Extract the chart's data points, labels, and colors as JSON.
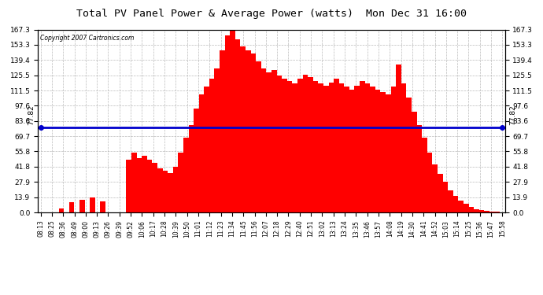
{
  "title": "Total PV Panel Power & Average Power (watts)  Mon Dec 31 16:00",
  "copyright_text": "Copyright 2007 Cartronics.com",
  "average_power": 77.82,
  "bar_color": "#FF0000",
  "avg_line_color": "#0000CC",
  "background_color": "#FFFFFF",
  "plot_bg_color": "#FFFFFF",
  "grid_color": "#AAAAAA",
  "yticks": [
    0.0,
    13.9,
    27.9,
    41.8,
    55.8,
    69.7,
    83.6,
    97.6,
    111.5,
    125.5,
    139.4,
    153.3,
    167.3
  ],
  "ylim": [
    0,
    167.3
  ],
  "x_tick_labels": [
    "08:13",
    "08:25",
    "08:36",
    "08:49",
    "09:00",
    "09:13",
    "09:26",
    "09:39",
    "09:52",
    "10:06",
    "10:17",
    "10:28",
    "10:39",
    "10:50",
    "11:01",
    "11:12",
    "11:23",
    "11:34",
    "11:45",
    "11:56",
    "12:07",
    "12:18",
    "12:29",
    "12:40",
    "12:51",
    "13:02",
    "13:13",
    "13:24",
    "13:35",
    "13:46",
    "13:57",
    "14:08",
    "14:19",
    "14:30",
    "14:41",
    "14:52",
    "15:03",
    "15:14",
    "15:25",
    "15:36",
    "15:47",
    "15:58"
  ],
  "bar_values": [
    0.0,
    0.0,
    0.0,
    0.0,
    3.5,
    0.0,
    9.0,
    0.0,
    11.5,
    0.0,
    13.5,
    0.0,
    10.0,
    0.0,
    0.0,
    0.0,
    0.0,
    48.0,
    55.0,
    50.0,
    52.0,
    48.0,
    45.0,
    40.0,
    38.0,
    36.0,
    42.0,
    55.0,
    68.0,
    80.0,
    95.0,
    108.0,
    115.0,
    122.0,
    132.0,
    148.0,
    162.0,
    167.0,
    158.0,
    152.0,
    148.0,
    145.0,
    138.0,
    132.0,
    128.0,
    130.0,
    125.0,
    122.0,
    120.0,
    118.0,
    122.0,
    126.0,
    124.0,
    120.0,
    118.0,
    116.0,
    119.0,
    122.0,
    118.0,
    115.0,
    112.0,
    116.0,
    120.0,
    118.0,
    115.0,
    112.0,
    110.0,
    108.0,
    115.0,
    135.0,
    118.0,
    105.0,
    92.0,
    80.0,
    68.0,
    55.0,
    44.0,
    35.0,
    28.0,
    20.0,
    15.0,
    11.0,
    8.0,
    5.0,
    3.0,
    2.5,
    1.5,
    1.0,
    0.5,
    0.3
  ]
}
